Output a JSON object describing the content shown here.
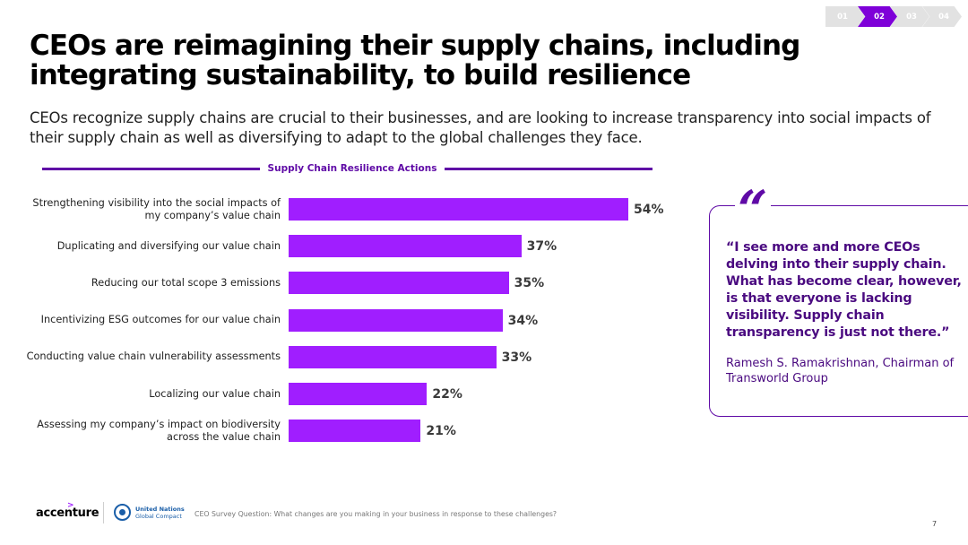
{
  "nav": {
    "steps": [
      "01",
      "02",
      "03",
      "04"
    ],
    "active": "02"
  },
  "title": "CEOs are reimagining their supply chains, including integrating sustainability, to build resilience",
  "subtitle": "CEOs recognize supply chains are crucial to their businesses, and are looking to increase transparency into social impacts of their supply chain as well as diversifying to adapt to the global challenges they face.",
  "colors": {
    "bar": "#a01eff",
    "accent": "#5f0aa6"
  },
  "chart_data": {
    "type": "bar",
    "orientation": "horizontal",
    "title": "Supply Chain Resilience Actions",
    "categories": [
      "Strengthening visibility into the social impacts of my company’s value chain",
      "Duplicating and diversifying our value chain",
      "Reducing our total scope 3 emissions",
      "Incentivizing ESG outcomes for our value chain",
      "Conducting value chain vulnerability assessments",
      "Localizing our value chain",
      "Assessing my company’s impact on biodiversity across the value chain"
    ],
    "values": [
      54,
      37,
      35,
      34,
      33,
      22,
      21
    ],
    "value_labels": [
      "54%",
      "37%",
      "35%",
      "34%",
      "33%",
      "22%",
      "21%"
    ],
    "unit": "%",
    "xlim": [
      0,
      100
    ]
  },
  "quote": {
    "mark": "“",
    "text": "“I see more and more CEOs delving into their supply chain. What has become clear, however, is that everyone is lacking visibility. Supply chain transparency is just not there.”",
    "author": "Ramesh S. Ramakrishnan, Chairman of Transworld Group"
  },
  "footer": {
    "logo": "accenture",
    "logo_mark": ">",
    "un_line1": "United Nations",
    "un_line2": "Global Compact",
    "footnote": "CEO Survey Question: What changes are you making in your business in response to these challenges?",
    "page_number": "7"
  }
}
